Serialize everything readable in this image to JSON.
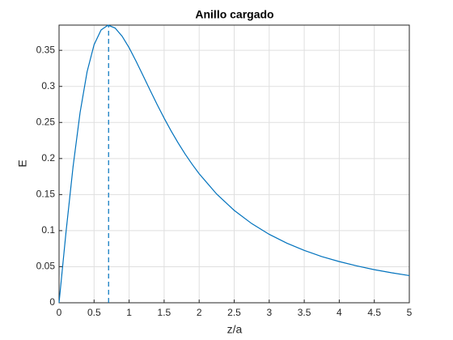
{
  "chart_data": {
    "type": "line",
    "title": "Anillo cargado",
    "xlabel": "z/a",
    "ylabel": "E",
    "xlim": [
      0,
      5
    ],
    "ylim": [
      0,
      0.385
    ],
    "xticks": [
      0,
      0.5,
      1,
      1.5,
      2,
      2.5,
      3,
      3.5,
      4,
      4.5,
      5
    ],
    "yticks": [
      0,
      0.05,
      0.1,
      0.15,
      0.2,
      0.25,
      0.3,
      0.35
    ],
    "grid": true,
    "series": [
      {
        "color": "#0072bd",
        "style": "solid",
        "x": [
          0,
          0.1,
          0.2,
          0.3,
          0.4,
          0.5,
          0.6,
          0.7,
          0.8,
          0.9,
          1.0,
          1.1,
          1.2,
          1.3,
          1.4,
          1.5,
          1.6,
          1.7,
          1.8,
          1.9,
          2.0,
          2.25,
          2.5,
          2.75,
          3,
          3.25,
          3.5,
          3.75,
          4,
          4.25,
          4.5,
          4.75,
          5
        ],
        "values": [
          0,
          0.0985,
          0.1886,
          0.2636,
          0.3202,
          0.3578,
          0.3783,
          0.3849,
          0.3809,
          0.3696,
          0.3536,
          0.3348,
          0.3148,
          0.2947,
          0.2749,
          0.256,
          0.2382,
          0.2216,
          0.2062,
          0.192,
          0.1789,
          0.1507,
          0.1281,
          0.1098,
          0.0949,
          0.0827,
          0.0726,
          0.0641,
          0.0571,
          0.0511,
          0.0459,
          0.0415,
          0.0377
        ]
      },
      {
        "color": "#0072bd",
        "style": "dashed",
        "x": [
          0.7071,
          0.7071
        ],
        "values": [
          0,
          0.3849
        ]
      }
    ]
  }
}
